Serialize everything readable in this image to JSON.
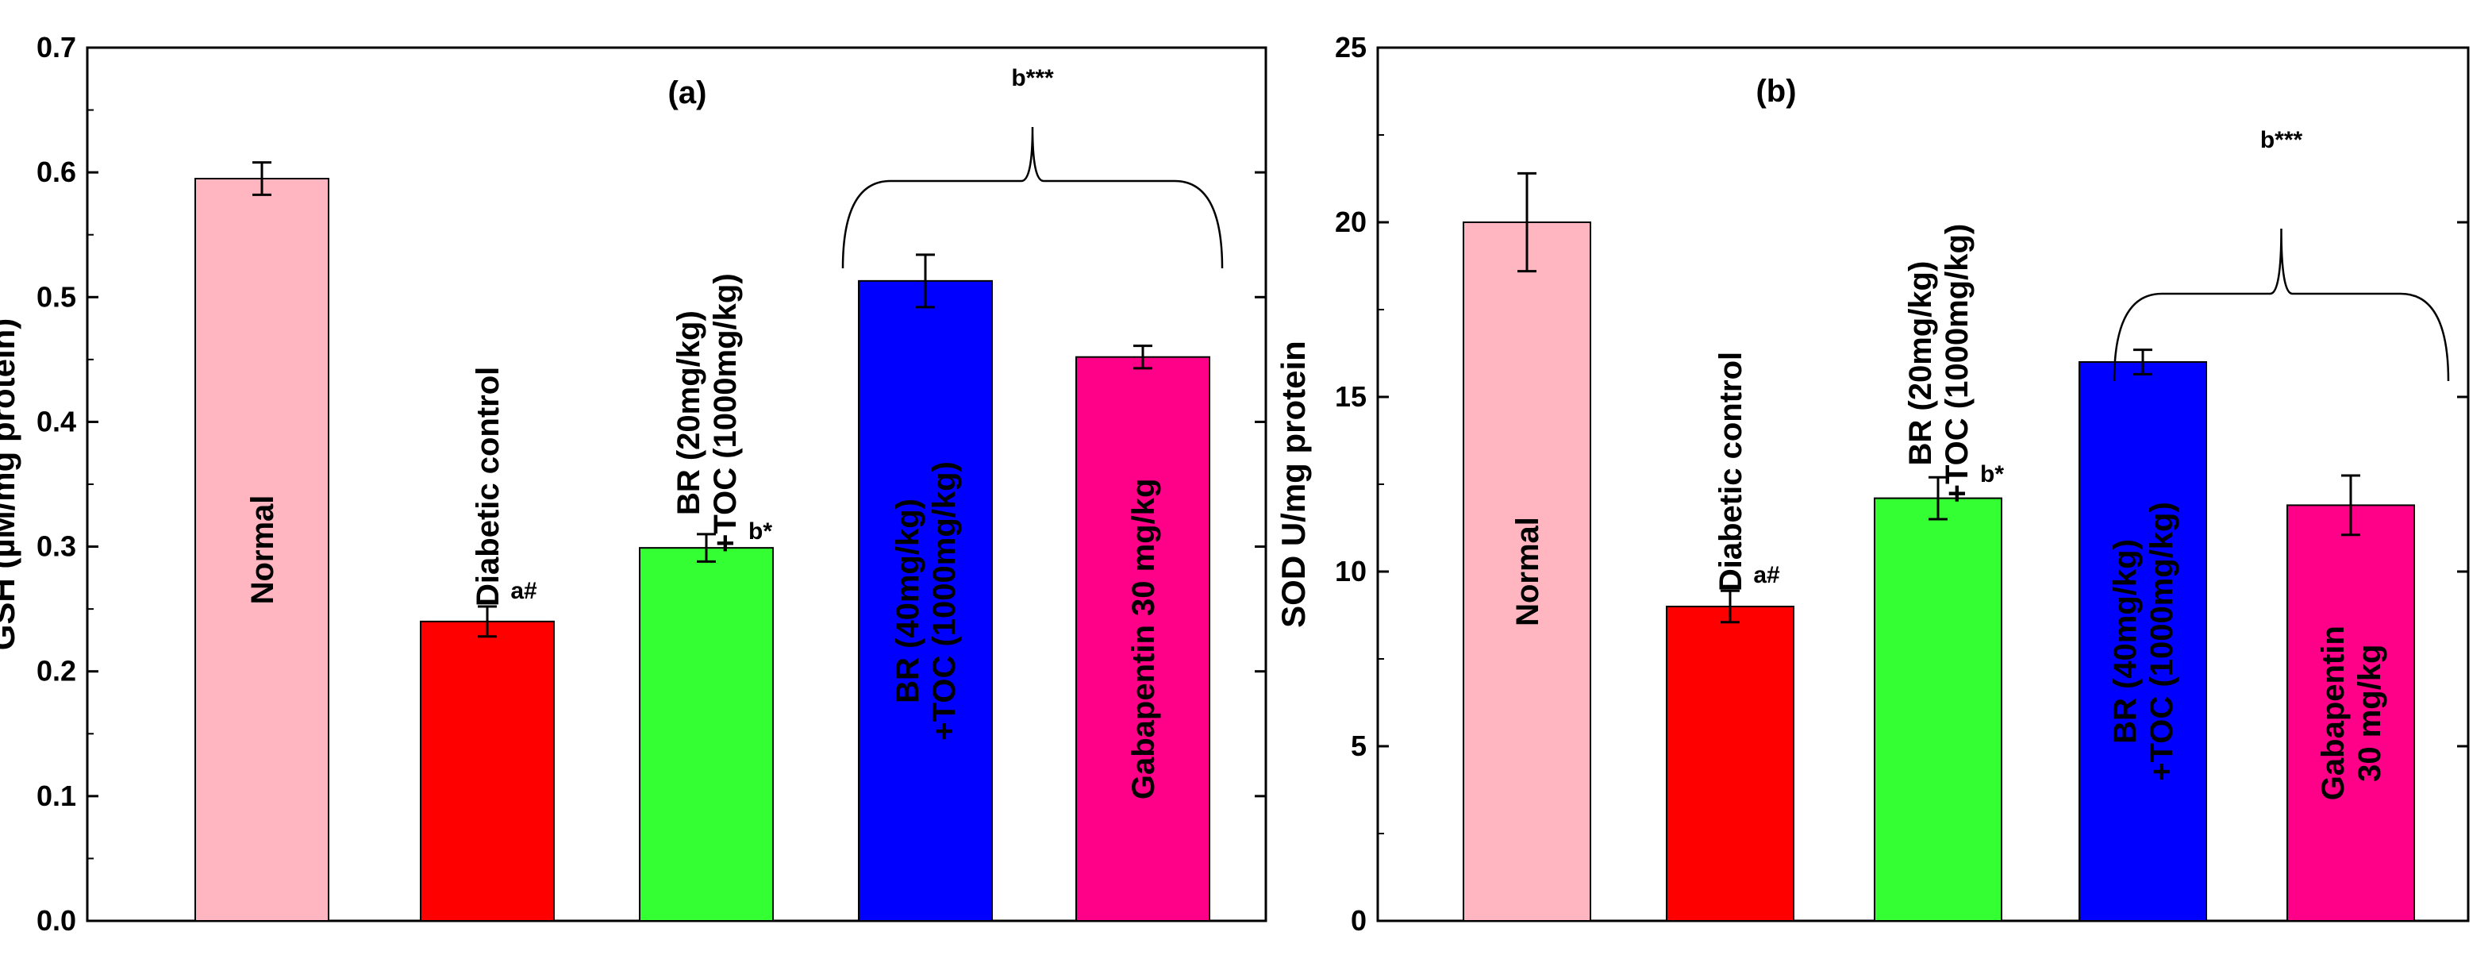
{
  "chart_data": [
    {
      "type": "bar",
      "panel": "(a)",
      "ylabel": "GSH (µM/mg protein)",
      "ylim": [
        0,
        0.7
      ],
      "yticks": [
        "0.0",
        "0.1",
        "0.2",
        "0.3",
        "0.4",
        "0.5",
        "0.6",
        "0.7"
      ],
      "categories": [
        {
          "lines": [
            "Normal"
          ]
        },
        {
          "lines": [
            "Diabetic control"
          ]
        },
        {
          "lines": [
            "BR (20mg/kg)",
            "+TOC (1000mg/kg)"
          ]
        },
        {
          "lines": [
            "BR (40mg/kg)",
            "+TOC (1000mg/kg)"
          ]
        },
        {
          "lines": [
            "Gabapentin 30 mg/kg"
          ]
        }
      ],
      "values": [
        0.595,
        0.24,
        0.299,
        0.513,
        0.452
      ],
      "errors": [
        0.013,
        0.012,
        0.011,
        0.021,
        0.009
      ],
      "colors": [
        "#ffb6c1",
        "#ff0000",
        "#33ff33",
        "#0000ff",
        "#ff0088"
      ],
      "significance": [
        "",
        "a#",
        "b*",
        "",
        ""
      ],
      "group_annotation": {
        "label": "b***",
        "from": 3,
        "to": 4
      }
    },
    {
      "type": "bar",
      "panel": "(b)",
      "ylabel": "SOD U/mg protein",
      "ylim": [
        0,
        25
      ],
      "yticks": [
        "0",
        "5",
        "10",
        "15",
        "20",
        "25"
      ],
      "categories": [
        {
          "lines": [
            "Normal"
          ]
        },
        {
          "lines": [
            "Diabetic control"
          ]
        },
        {
          "lines": [
            "BR (20mg/kg)",
            "+TOC (1000mg/kg)"
          ]
        },
        {
          "lines": [
            "BR (40mg/kg)",
            "+TOC (1000mg/kg)"
          ]
        },
        {
          "lines": [
            "Gabapentin",
            "30 mg/kg"
          ]
        }
      ],
      "values": [
        20.0,
        9.0,
        12.1,
        16.0,
        11.9
      ],
      "errors": [
        1.4,
        0.45,
        0.6,
        0.35,
        0.85
      ],
      "colors": [
        "#ffb6c1",
        "#ff0000",
        "#33ff33",
        "#0000ff",
        "#ff0088"
      ],
      "significance": [
        "",
        "a#",
        "b*",
        "",
        ""
      ],
      "group_annotation": {
        "label": "b***",
        "from": 3,
        "to": 4
      }
    }
  ]
}
